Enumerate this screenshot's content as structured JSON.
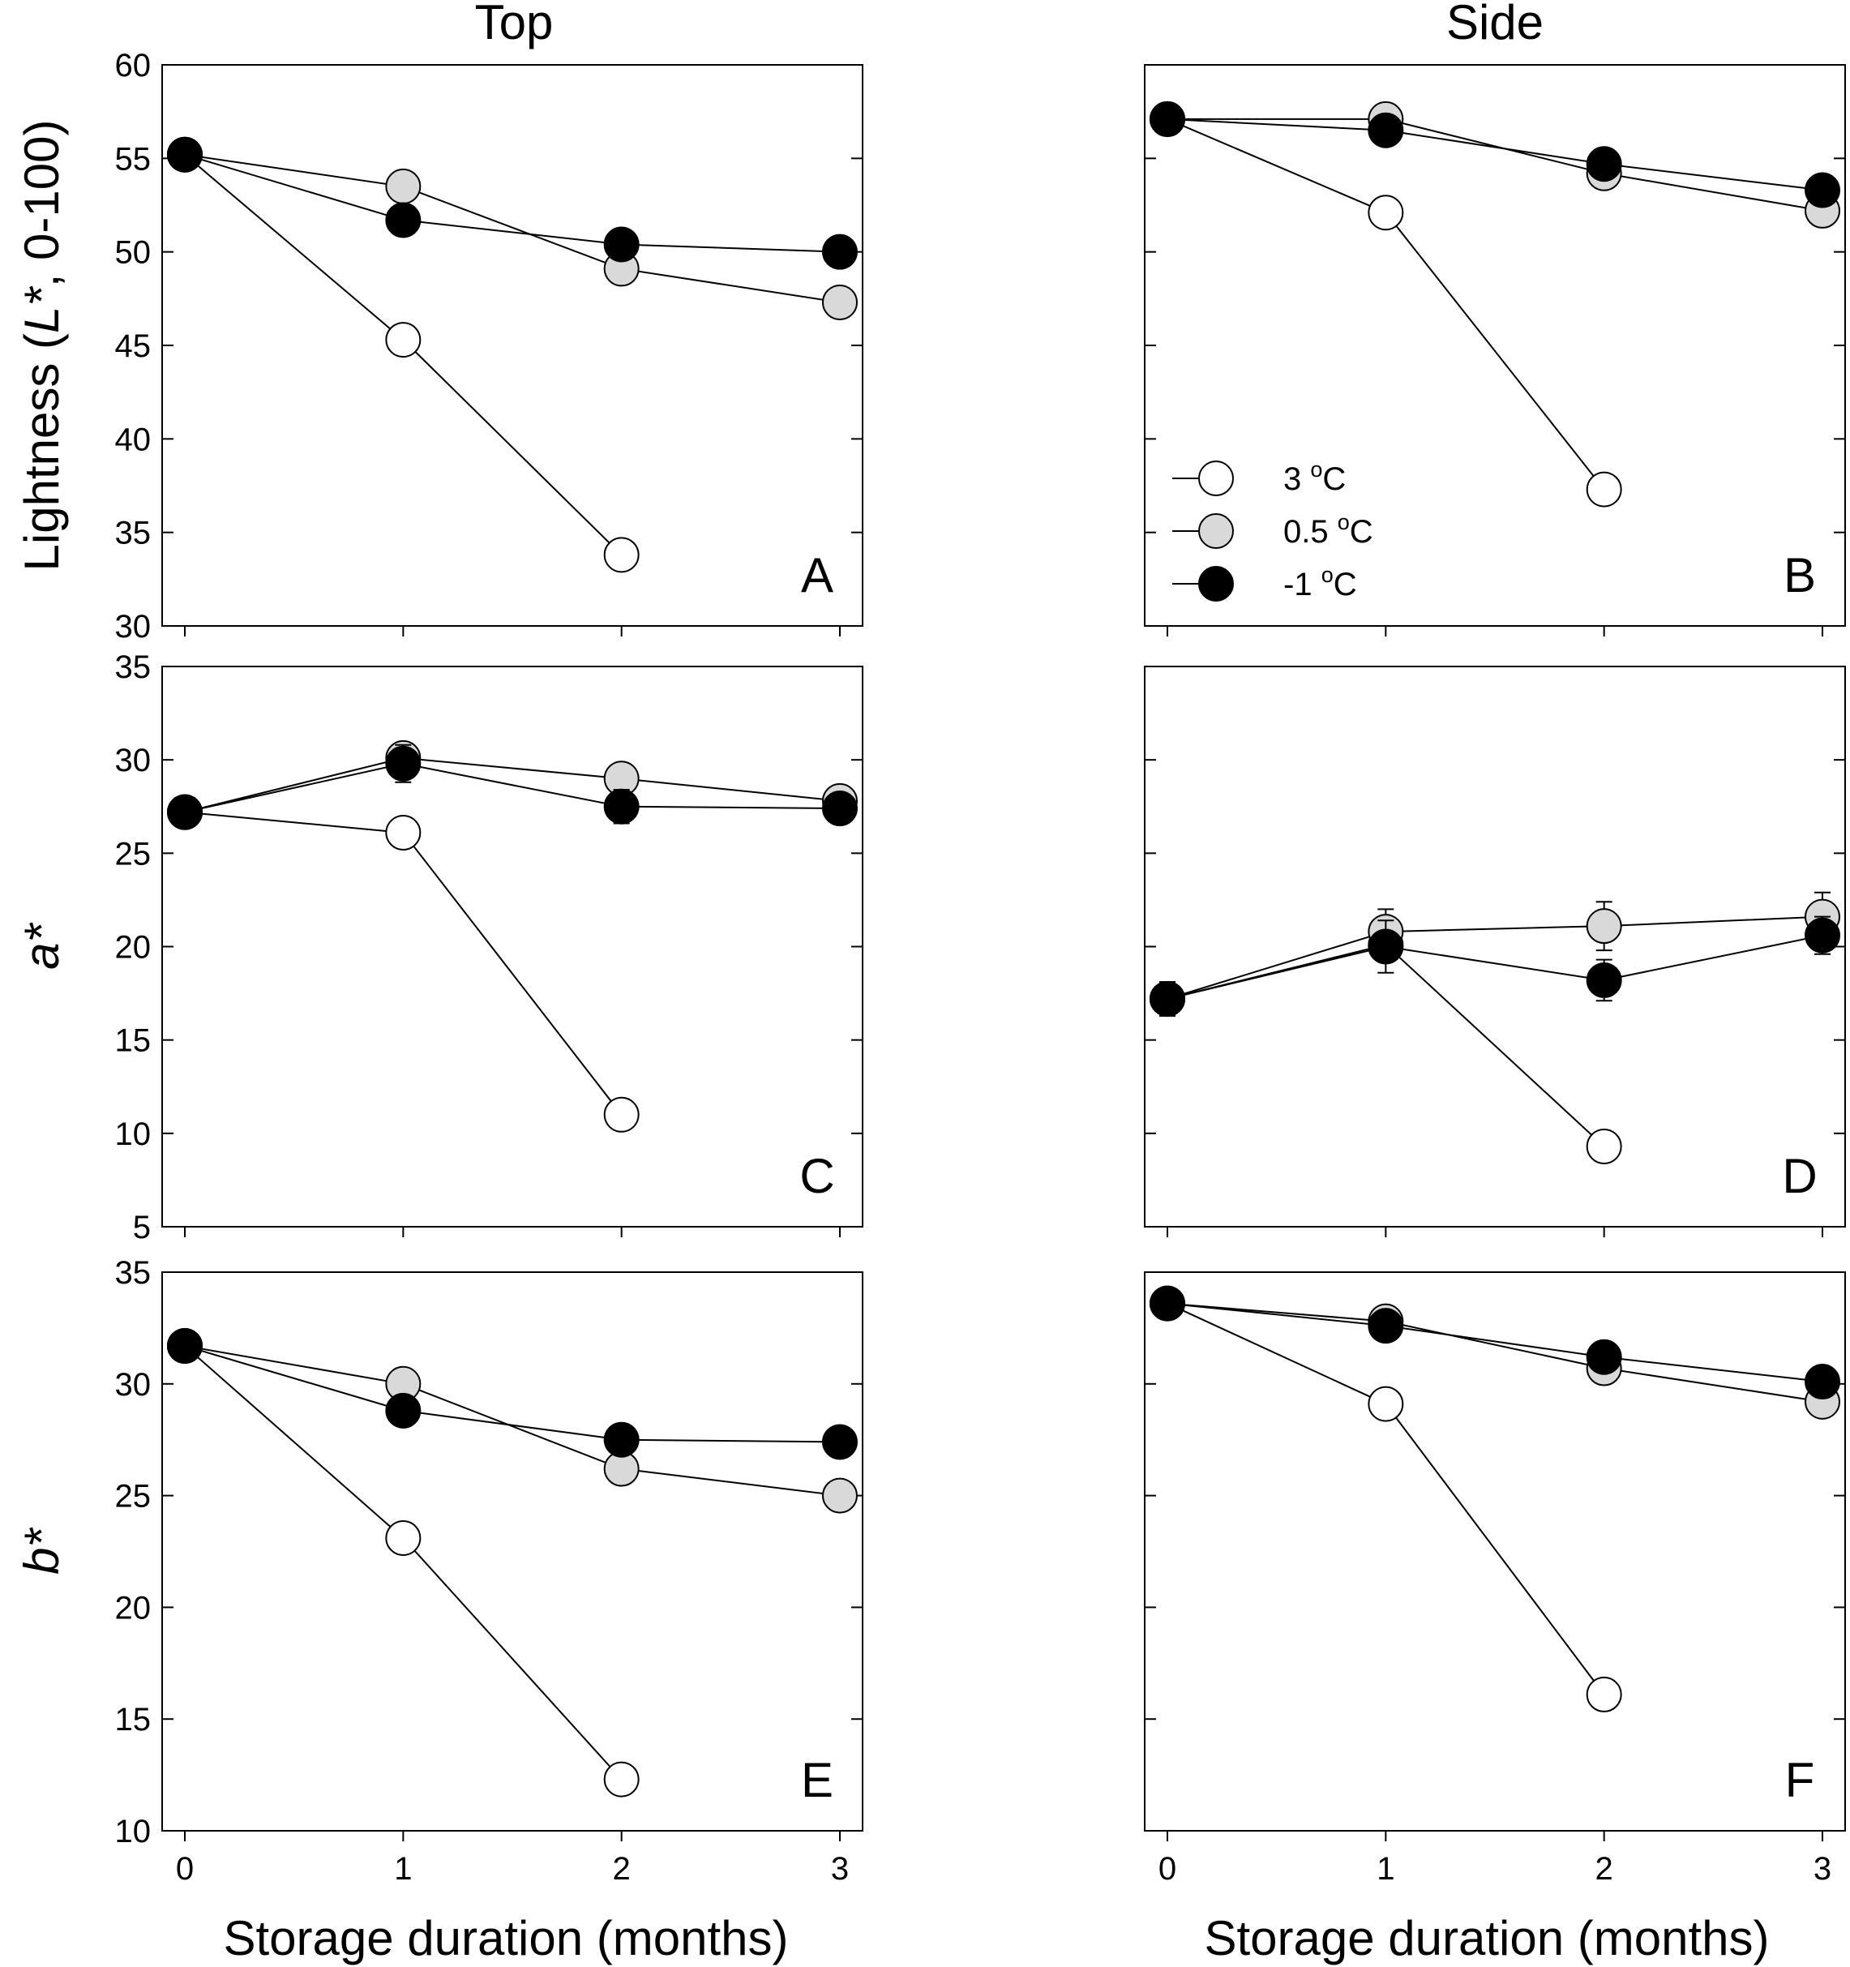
{
  "chart_data": {
    "type": "line",
    "column_titles": [
      "Top",
      "Side"
    ],
    "xlabel": "Storage duration (months)",
    "x_ticks": [
      "0",
      "1",
      "2",
      "3"
    ],
    "legend": [
      {
        "label": "3 °C",
        "base": "3 ",
        "sup": "o",
        "unit": "C",
        "fill": "#ffffff"
      },
      {
        "label": "0.5 °C",
        "base": "0.5 ",
        "sup": "o",
        "unit": "C",
        "fill": "#d9d9d9"
      },
      {
        "label": "-1 °C",
        "base": "-1 ",
        "sup": "o",
        "unit": "C",
        "fill": "#000000"
      }
    ],
    "rows": [
      {
        "ylabel": {
          "pre": "Lightness (",
          "ital": "L*",
          "post": ", 0-100)"
        },
        "ylim": [
          30,
          60
        ],
        "yticks": [
          30,
          35,
          40,
          45,
          50,
          55,
          60
        ]
      },
      {
        "ylabel": {
          "pre": "",
          "ital": "a*",
          "post": ""
        },
        "ylim": [
          5,
          35
        ],
        "yticks": [
          5,
          10,
          15,
          20,
          25,
          30,
          35
        ]
      },
      {
        "ylabel": {
          "pre": "",
          "ital": "b*",
          "post": ""
        },
        "ylim": [
          10,
          35
        ],
        "yticks": [
          10,
          15,
          20,
          25,
          30,
          35
        ]
      }
    ],
    "panels": [
      {
        "letter": "A",
        "row": 0,
        "col": 0,
        "series": [
          {
            "name": "3 °C",
            "x": [
              0,
              1,
              2
            ],
            "y": [
              55.2,
              45.3,
              33.8
            ],
            "err": [
              0.2,
              0.4,
              0.3
            ]
          },
          {
            "name": "0.5 °C",
            "x": [
              0,
              1,
              2,
              3
            ],
            "y": [
              55.2,
              53.5,
              49.1,
              47.3
            ],
            "err": [
              0.2,
              0.3,
              0.4,
              0.4
            ]
          },
          {
            "name": "-1 °C",
            "x": [
              0,
              1,
              2,
              3
            ],
            "y": [
              55.2,
              51.7,
              50.4,
              50.0
            ],
            "err": [
              0.2,
              0.8,
              0.3,
              0.2
            ]
          }
        ]
      },
      {
        "letter": "B",
        "row": 0,
        "col": 1,
        "series": [
          {
            "name": "3 °C",
            "x": [
              0,
              1,
              2
            ],
            "y": [
              57.1,
              52.1,
              37.3
            ],
            "err": [
              0.2,
              0.3,
              0.3
            ]
          },
          {
            "name": "0.5 °C",
            "x": [
              0,
              1,
              2,
              3
            ],
            "y": [
              57.1,
              57.1,
              54.2,
              52.2
            ],
            "err": [
              0.2,
              0.3,
              0.3,
              0.3
            ]
          },
          {
            "name": "-1 °C",
            "x": [
              0,
              1,
              2,
              3
            ],
            "y": [
              57.1,
              56.5,
              54.7,
              53.3
            ],
            "err": [
              0.2,
              0.3,
              0.3,
              0.3
            ]
          }
        ]
      },
      {
        "letter": "C",
        "row": 1,
        "col": 0,
        "series": [
          {
            "name": "3 °C",
            "x": [
              0,
              1,
              2
            ],
            "y": [
              27.2,
              26.1,
              11.0
            ],
            "err": [
              0.4,
              0.3,
              0.3
            ]
          },
          {
            "name": "0.5 °C",
            "x": [
              0,
              1,
              2,
              3
            ],
            "y": [
              27.2,
              30.1,
              29.0,
              27.8
            ],
            "err": [
              0.4,
              0.6,
              0.5,
              0.8
            ]
          },
          {
            "name": "-1 °C",
            "x": [
              0,
              1,
              2,
              3
            ],
            "y": [
              27.2,
              29.8,
              27.5,
              27.4
            ],
            "err": [
              0.4,
              1.0,
              0.9,
              0.6
            ]
          }
        ]
      },
      {
        "letter": "D",
        "row": 1,
        "col": 1,
        "series": [
          {
            "name": "3 °C",
            "x": [
              0,
              1,
              2
            ],
            "y": [
              17.2,
              20.1,
              9.3
            ],
            "err": [
              0.9,
              0.5,
              0.3
            ]
          },
          {
            "name": "0.5 °C",
            "x": [
              0,
              1,
              2,
              3
            ],
            "y": [
              17.2,
              20.8,
              21.1,
              21.6
            ],
            "err": [
              0.9,
              1.2,
              1.3,
              1.3
            ]
          },
          {
            "name": "-1 °C",
            "x": [
              0,
              1,
              2,
              3
            ],
            "y": [
              17.2,
              20.0,
              18.2,
              20.6
            ],
            "err": [
              0.9,
              1.4,
              1.1,
              1.0
            ]
          }
        ]
      },
      {
        "letter": "E",
        "row": 2,
        "col": 0,
        "series": [
          {
            "name": "3 °C",
            "x": [
              0,
              1,
              2
            ],
            "y": [
              31.7,
              23.1,
              12.3
            ],
            "err": [
              0.3,
              0.3,
              0.3
            ]
          },
          {
            "name": "0.5 °C",
            "x": [
              0,
              1,
              2,
              3
            ],
            "y": [
              31.7,
              30.0,
              26.2,
              25.0
            ],
            "err": [
              0.3,
              0.4,
              0.4,
              0.3
            ]
          },
          {
            "name": "-1 °C",
            "x": [
              0,
              1,
              2,
              3
            ],
            "y": [
              31.7,
              28.8,
              27.5,
              27.4
            ],
            "err": [
              0.3,
              0.6,
              0.4,
              0.3
            ]
          }
        ]
      },
      {
        "letter": "F",
        "row": 2,
        "col": 1,
        "series": [
          {
            "name": "3 °C",
            "x": [
              0,
              1,
              2
            ],
            "y": [
              33.6,
              29.1,
              16.1
            ],
            "err": [
              0.3,
              0.3,
              0.3
            ]
          },
          {
            "name": "0.5 °C",
            "x": [
              0,
              1,
              2,
              3
            ],
            "y": [
              33.6,
              32.8,
              30.7,
              29.2
            ],
            "err": [
              0.3,
              0.3,
              0.3,
              0.3
            ]
          },
          {
            "name": "-1 °C",
            "x": [
              0,
              1,
              2,
              3
            ],
            "y": [
              33.6,
              32.6,
              31.2,
              30.1
            ],
            "err": [
              0.3,
              0.3,
              0.3,
              0.3
            ]
          }
        ]
      }
    ]
  }
}
